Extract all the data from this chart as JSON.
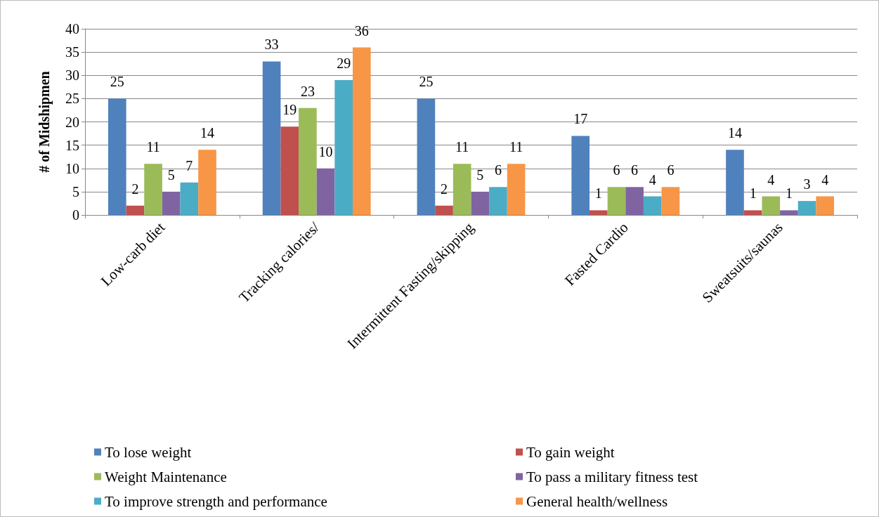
{
  "chart_data": {
    "type": "bar",
    "ylabel": "# of Midshipmen",
    "categories": [
      "Low-carb diet",
      "Tracking calories/",
      "Intermittent Fasting/skipping",
      "Fasted Cardio",
      "Sweatsuits/saunas"
    ],
    "series": [
      {
        "name": "To lose weight",
        "color": "#4f81bd",
        "values": [
          25,
          33,
          25,
          17,
          14
        ]
      },
      {
        "name": "To gain weight",
        "color": "#c0504d",
        "values": [
          2,
          19,
          2,
          1,
          1
        ]
      },
      {
        "name": "Weight Maintenance",
        "color": "#9bbb59",
        "values": [
          11,
          23,
          11,
          6,
          4
        ]
      },
      {
        "name": "To pass a military fitness test",
        "color": "#8064a2",
        "values": [
          5,
          10,
          5,
          6,
          1
        ]
      },
      {
        "name": "To improve strength and performance",
        "color": "#4bacc6",
        "values": [
          7,
          29,
          6,
          4,
          3
        ]
      },
      {
        "name": "General health/wellness",
        "color": "#f79646",
        "values": [
          14,
          36,
          11,
          6,
          4
        ]
      }
    ],
    "ylim": [
      0,
      40
    ],
    "yticks": [
      0,
      5,
      10,
      15,
      20,
      25,
      30,
      35,
      40
    ],
    "grid": "y",
    "legend": "bottom",
    "data_labels": true
  }
}
